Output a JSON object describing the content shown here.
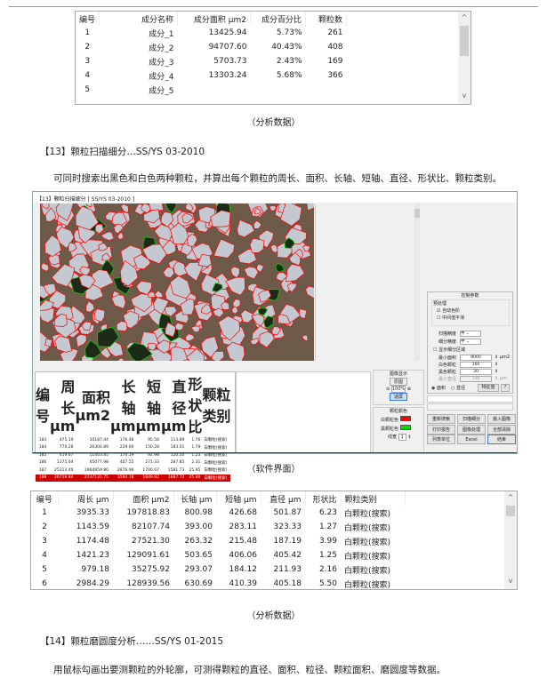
{
  "table1": {
    "headers": [
      "编号",
      "成分名称",
      "成分面积 μm2",
      "成分百分比",
      "颗粒数"
    ],
    "rows": [
      [
        "1",
        "成分_1",
        "13425.94",
        "5.73%",
        "261"
      ],
      [
        "2",
        "成分_2",
        "94707.60",
        "40.43%",
        "408"
      ],
      [
        "3",
        "成分_3",
        "5703.73",
        "2.43%",
        "169"
      ],
      [
        "4",
        "成分_4",
        "13303.24",
        "5.68%",
        "366"
      ],
      [
        "5",
        "成分_5",
        "",
        "",
        ""
      ]
    ]
  },
  "caption1": "（分析数据）",
  "section13": {
    "heading": "【13】颗粒扫描细分…SS/YS 03-2010",
    "text": "可同时搜索出黑色和白色两种颗粒，并算出每个颗粒的周长、面积、长轴、短轴、直径、形状比、颗粒类别。"
  },
  "software": {
    "title": "【13】颗粒扫描细分 [ SS/YS 03-2010 ]",
    "table": {
      "headers": [
        "编号",
        "周长 μm",
        "面积 μm2",
        "长轴 μm",
        "短轴 μm",
        "直径 μm",
        "形状比",
        "颗粒类别"
      ],
      "rows": [
        [
          "183",
          "475.19",
          "10187.44",
          "176.48",
          "95.58",
          "113.89",
          "1.76",
          "白颗粒(搜索)"
        ],
        [
          "184",
          "770.28",
          "26304.89",
          "229.90",
          "150.28",
          "183.01",
          "1.79",
          "白颗粒(搜索)"
        ],
        [
          "185",
          "419.67",
          "11403.85",
          "170.19",
          "92.98",
          "120.50",
          "1.23",
          "白颗粒(搜索)"
        ],
        [
          "186",
          "1375.04",
          "65077.98",
          "407.55",
          "271.33",
          "287.85",
          "2.31",
          "白颗粒(搜索)"
        ],
        [
          "187",
          "25313.40",
          "1964959.80",
          "2876.96",
          "1700.67",
          "1581.73",
          "25.95",
          "白颗粒(搜索)"
        ],
        [
          "188",
          "26719.84",
          "2237131.75",
          "3592.78",
          "1849.62",
          "1687.72",
          "25.40",
          "白颗粒(搜索)"
        ]
      ],
      "selected_index": 5
    },
    "image_display": {
      "title": "图像显示",
      "original": "原图",
      "zoom": "100%",
      "fit": "适屏"
    },
    "particle_color": {
      "title": "颗粒颜色",
      "white": "白颗粒色",
      "black": "黑颗粒色",
      "line_width_label": "线宽",
      "line_width": "1",
      "white_color": "#ff0000",
      "black_color": "#00dd00"
    },
    "control": {
      "title": "控制参数",
      "preprocess": "预处理",
      "auto_color": "自动色阶",
      "auto_color_checked": true,
      "median": "中间值平滑",
      "median_checked": false,
      "scan_precision_label": "扫描精度",
      "scan_precision": "中",
      "sub_precision_label": "细分精度",
      "sub_precision": "中",
      "show_sub": "显示细分区域",
      "min_area_label": "最小面积",
      "min_area": "8000",
      "unit_area": "μm2",
      "white_label": "白色颗粒",
      "white_val": "160",
      "black_label": "黑色颗粒",
      "black_val": "30",
      "min_dia_label": "最小直径",
      "min_dia": "100",
      "unit_dia": "μm",
      "radio_area": "面积",
      "radio_dia": "直径",
      "special": "特征值",
      "help": "?"
    },
    "buttons": [
      "重新搜索",
      "扫描细分",
      "装入图像",
      "打印报告",
      "图像处理",
      "全部清除",
      "列表单位",
      "Excel",
      "结束"
    ]
  },
  "caption2": "（软件界面）",
  "table2": {
    "headers": [
      "编号",
      "周长 μm",
      "面积 μm2",
      "长轴 μm",
      "短轴 μm",
      "直径 μm",
      "形状比",
      "颗粒类别"
    ],
    "rows": [
      [
        "1",
        "3935.33",
        "197818.83",
        "800.98",
        "426.68",
        "501.87",
        "6.23",
        "白颗粒(搜索)"
      ],
      [
        "2",
        "1143.59",
        "82107.74",
        "393.00",
        "283.11",
        "323.33",
        "1.27",
        "白颗粒(搜索)"
      ],
      [
        "3",
        "1174.48",
        "27521.30",
        "263.32",
        "215.48",
        "187.19",
        "3.99",
        "白颗粒(搜索)"
      ],
      [
        "4",
        "1421.23",
        "129091.61",
        "503.65",
        "406.06",
        "405.42",
        "1.25",
        "白颗粒(搜索)"
      ],
      [
        "5",
        "979.18",
        "35275.92",
        "293.07",
        "184.12",
        "211.93",
        "2.16",
        "白颗粒(搜索)"
      ],
      [
        "6",
        "2984.29",
        "128939.56",
        "630.69",
        "410.39",
        "405.18",
        "5.50",
        "白颗粒(搜索)"
      ]
    ]
  },
  "caption3": "（分析数据）",
  "section14": {
    "heading": "【14】颗粒磨圆度分析……SS/YS 01-2015",
    "text": "用鼠标勾画出要测颗粒的外轮廓，可测得颗粒的直径、面积、粒径、颗粒面积、磨圆度等数据。"
  }
}
